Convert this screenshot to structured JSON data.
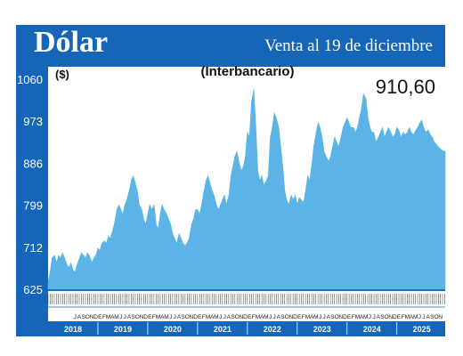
{
  "header": {
    "title": "Dólar",
    "subtitle": "Venta al 19 de diciembre"
  },
  "colors": {
    "frame": "#1565b8",
    "area": "#5bb4e5",
    "plot_bg": "#ffffff"
  },
  "chart_data": {
    "type": "area",
    "title": "(Interbancario)",
    "ylabel": "($)",
    "ylim": [
      625,
      1060
    ],
    "yticks": [
      "1060",
      "973",
      "886",
      "799",
      "712",
      "625"
    ],
    "last_value_label": "910,60",
    "years": [
      "2018",
      "2019",
      "2020",
      "2021",
      "2022",
      "2023",
      "2024",
      "2025"
    ],
    "x_start": 2018.0,
    "x_end": 2025.97,
    "x": [
      2018.0,
      2018.04,
      2018.08,
      2018.13,
      2018.17,
      2018.21,
      2018.25,
      2018.29,
      2018.33,
      2018.38,
      2018.42,
      2018.46,
      2018.5,
      2018.54,
      2018.58,
      2018.63,
      2018.67,
      2018.71,
      2018.75,
      2018.79,
      2018.83,
      2018.88,
      2018.92,
      2018.96,
      2019.0,
      2019.04,
      2019.08,
      2019.13,
      2019.17,
      2019.21,
      2019.25,
      2019.29,
      2019.33,
      2019.38,
      2019.42,
      2019.46,
      2019.5,
      2019.54,
      2019.58,
      2019.63,
      2019.67,
      2019.71,
      2019.75,
      2019.79,
      2019.83,
      2019.88,
      2019.92,
      2019.96,
      2020.0,
      2020.04,
      2020.08,
      2020.13,
      2020.17,
      2020.21,
      2020.25,
      2020.29,
      2020.33,
      2020.38,
      2020.42,
      2020.46,
      2020.5,
      2020.54,
      2020.58,
      2020.63,
      2020.67,
      2020.71,
      2020.75,
      2020.79,
      2020.83,
      2020.88,
      2020.92,
      2020.96,
      2021.0,
      2021.04,
      2021.08,
      2021.13,
      2021.17,
      2021.21,
      2021.25,
      2021.29,
      2021.33,
      2021.38,
      2021.42,
      2021.46,
      2021.5,
      2021.54,
      2021.58,
      2021.63,
      2021.67,
      2021.71,
      2021.75,
      2021.79,
      2021.83,
      2021.88,
      2021.92,
      2021.96,
      2022.0,
      2022.04,
      2022.08,
      2022.13,
      2022.17,
      2022.21,
      2022.25,
      2022.29,
      2022.33,
      2022.38,
      2022.42,
      2022.46,
      2022.5,
      2022.54,
      2022.58,
      2022.63,
      2022.67,
      2022.71,
      2022.75,
      2022.79,
      2022.83,
      2022.88,
      2022.92,
      2022.96,
      2023.0,
      2023.04,
      2023.08,
      2023.13,
      2023.17,
      2023.21,
      2023.25,
      2023.29,
      2023.33,
      2023.38,
      2023.42,
      2023.46,
      2023.5,
      2023.54,
      2023.58,
      2023.63,
      2023.67,
      2023.71,
      2023.75,
      2023.79,
      2023.83,
      2023.88,
      2023.92,
      2023.96,
      2024.0,
      2024.04,
      2024.08,
      2024.13,
      2024.17,
      2024.21,
      2024.25,
      2024.29,
      2024.33,
      2024.38,
      2024.42,
      2024.46,
      2024.5,
      2024.54,
      2024.58,
      2024.63,
      2024.67,
      2024.71,
      2024.75,
      2024.79,
      2024.83,
      2024.88,
      2024.92,
      2024.96,
      2025.0,
      2025.04,
      2025.08,
      2025.13,
      2025.17,
      2025.21,
      2025.25,
      2025.29,
      2025.33,
      2025.38,
      2025.42,
      2025.46,
      2025.5,
      2025.54,
      2025.58,
      2025.63,
      2025.67,
      2025.71,
      2025.75,
      2025.79,
      2025.83,
      2025.88,
      2025.92,
      2025.97
    ],
    "y": [
      640,
      660,
      690,
      695,
      680,
      695,
      690,
      700,
      690,
      675,
      670,
      680,
      665,
      660,
      675,
      690,
      700,
      695,
      690,
      700,
      695,
      680,
      690,
      695,
      710,
      705,
      720,
      725,
      720,
      735,
      730,
      745,
      760,
      790,
      800,
      790,
      780,
      800,
      810,
      830,
      850,
      860,
      845,
      830,
      800,
      790,
      770,
      760,
      780,
      800,
      790,
      800,
      760,
      750,
      780,
      800,
      790,
      780,
      770,
      760,
      740,
      730,
      720,
      740,
      730,
      720,
      715,
      720,
      730,
      760,
      770,
      790,
      790,
      780,
      800,
      830,
      850,
      860,
      845,
      830,
      820,
      800,
      790,
      800,
      810,
      820,
      800,
      820,
      860,
      880,
      900,
      910,
      890,
      870,
      880,
      900,
      950,
      940,
      1010,
      1040,
      960,
      870,
      850,
      860,
      840,
      850,
      860,
      940,
      960,
      990,
      980,
      960,
      920,
      880,
      830,
      810,
      800,
      820,
      810,
      820,
      800,
      815,
      810,
      805,
      830,
      860,
      850,
      880,
      920,
      950,
      970,
      960,
      940,
      910,
      900,
      890,
      900,
      920,
      940,
      930,
      920,
      940,
      960,
      970,
      980,
      970,
      960,
      960,
      950,
      960,
      980,
      1000,
      1030,
      1020,
      980,
      960,
      950,
      950,
      930,
      940,
      950,
      960,
      940,
      950,
      960,
      950,
      940,
      945,
      960,
      955,
      940,
      950,
      945,
      950,
      960,
      950,
      945,
      955,
      960,
      970,
      975,
      960,
      950,
      955,
      945,
      940,
      930,
      925,
      920,
      915,
      912,
      910.6
    ],
    "months_row": [
      "J",
      "A",
      "S",
      "O",
      "N",
      "D",
      "E",
      "F",
      "M",
      "A",
      "M",
      "J",
      "J",
      "A",
      "S",
      "O",
      "N",
      "D",
      "E",
      "F",
      "M",
      "A",
      "M",
      "J",
      "J",
      "A",
      "S",
      "O",
      "N",
      "D",
      "E",
      "F",
      "M",
      "A",
      "M",
      "J",
      "J",
      "A",
      "S",
      "O",
      "N",
      "D",
      "E",
      "F",
      "M",
      "A",
      "M",
      "J",
      "J",
      "A",
      "S",
      "O",
      "N",
      "D",
      "E",
      "F",
      "M",
      "A",
      "M",
      "J",
      "J",
      "A",
      "S",
      "O",
      "N",
      "D",
      "E",
      "F",
      "M",
      "A",
      "M",
      "J",
      "J",
      "A",
      "S",
      "O",
      "N",
      "D",
      "E",
      "F",
      "M",
      "A",
      "M",
      "J",
      "J",
      "A",
      "S",
      "O",
      "N",
      "D"
    ]
  }
}
